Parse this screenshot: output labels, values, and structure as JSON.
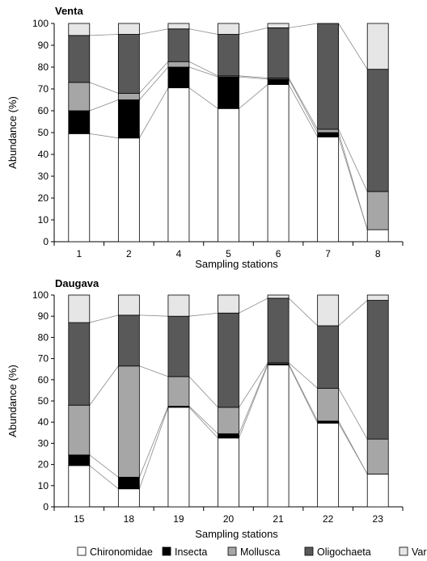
{
  "legend": [
    {
      "name": "Chironomidae",
      "color": "#ffffff"
    },
    {
      "name": "Insecta",
      "color": "#000000"
    },
    {
      "name": "Mollusca",
      "color": "#a6a6a6"
    },
    {
      "name": "Oligochaeta",
      "color": "#595959"
    },
    {
      "name": "Varia",
      "color": "#e6e6e6"
    }
  ],
  "chart_data": [
    {
      "type": "bar",
      "stacked": true,
      "title": "Venta",
      "xlabel": "Sampling stations",
      "ylabel": "Abundance (%)",
      "ylim": [
        0,
        100
      ],
      "yticks": [
        "0",
        "10",
        "20",
        "30",
        "40",
        "50",
        "60",
        "70",
        "80",
        "90",
        "100"
      ],
      "categories": [
        "1",
        "2",
        "4",
        "5",
        "6",
        "7",
        "8"
      ],
      "series": [
        {
          "name": "Chironomidae",
          "values": [
            49.5,
            47.5,
            70.5,
            61,
            72,
            48,
            5.5
          ]
        },
        {
          "name": "Insecta",
          "values": [
            10.5,
            17.5,
            9.5,
            14.5,
            2.5,
            2,
            0
          ]
        },
        {
          "name": "Mollusca",
          "values": [
            13,
            3,
            2.5,
            0.5,
            0.5,
            1.5,
            17.5
          ]
        },
        {
          "name": "Oligochaeta",
          "values": [
            21.5,
            27,
            15,
            19,
            23,
            48.5,
            56
          ]
        },
        {
          "name": "Varia",
          "values": [
            5.5,
            5,
            2.5,
            5,
            2,
            0,
            21
          ]
        }
      ]
    },
    {
      "type": "bar",
      "stacked": true,
      "title": "Daugava",
      "xlabel": "Sampling stations",
      "ylabel": "Abundance (%)",
      "ylim": [
        0,
        100
      ],
      "yticks": [
        "0",
        "10",
        "20",
        "30",
        "40",
        "50",
        "60",
        "70",
        "80",
        "90",
        "100"
      ],
      "categories": [
        "15",
        "18",
        "19",
        "20",
        "21",
        "22",
        "23"
      ],
      "series": [
        {
          "name": "Chironomidae",
          "values": [
            19.5,
            8.5,
            47,
            32.5,
            67,
            39.5,
            15.5
          ]
        },
        {
          "name": "Insecta",
          "values": [
            5,
            5.5,
            0.5,
            2,
            0.5,
            1,
            0
          ]
        },
        {
          "name": "Mollusca",
          "values": [
            23.5,
            52.5,
            14,
            12.5,
            0.5,
            15.5,
            16.5
          ]
        },
        {
          "name": "Oligochaeta",
          "values": [
            39,
            24,
            28.5,
            44.5,
            30.5,
            29.5,
            65.5
          ]
        },
        {
          "name": "Varia",
          "values": [
            13,
            9.5,
            10,
            8.5,
            1.5,
            14.5,
            2.5
          ]
        }
      ]
    }
  ]
}
